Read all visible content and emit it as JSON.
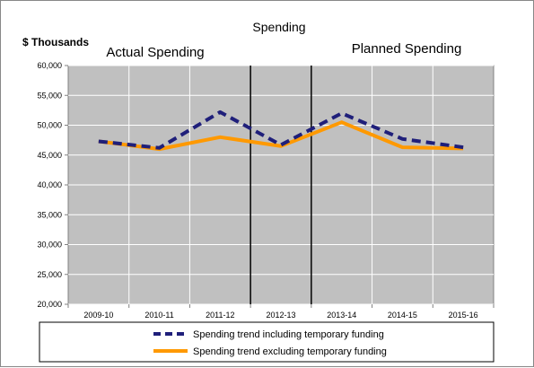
{
  "chart_data": {
    "type": "line",
    "title": "Spending",
    "ylabel": "$ Thousands",
    "xlabel": "",
    "section_labels": {
      "actual": "Actual Spending",
      "planned": "Planned Spending"
    },
    "categories": [
      "2009-10",
      "2010-11",
      "2011-12",
      "2012-13",
      "2013-14",
      "2014-15",
      "2015-16"
    ],
    "ylim": [
      20000,
      60000
    ],
    "yticks": [
      20000,
      25000,
      30000,
      35000,
      40000,
      45000,
      50000,
      55000,
      60000
    ],
    "ytick_labels": [
      "20,000",
      "25,000",
      "30,000",
      "35,000",
      "40,000",
      "45,000",
      "50,000",
      "55,000",
      "60,000"
    ],
    "grid": true,
    "legend_position": "bottom",
    "series": [
      {
        "name": "Spending trend including temporary funding",
        "values": [
          47300,
          46200,
          52200,
          46700,
          52000,
          47700,
          46300
        ],
        "color": "#1f1f7a",
        "style": "dashed"
      },
      {
        "name": "Spending trend excluding temporary funding",
        "values": [
          47300,
          46000,
          48000,
          46500,
          50500,
          46300,
          46100
        ],
        "color": "#ff9900",
        "style": "solid"
      }
    ],
    "plot_background": "#c0c0c0"
  }
}
